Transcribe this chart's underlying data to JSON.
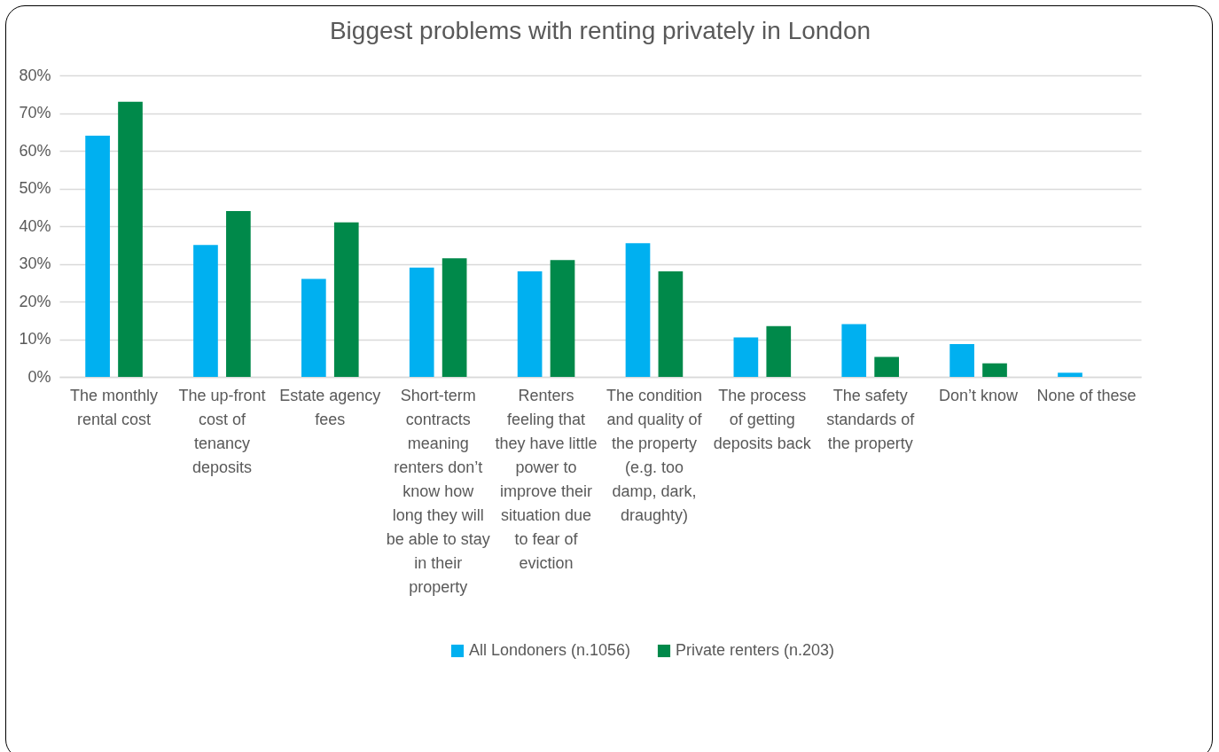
{
  "chart_data": {
    "type": "bar",
    "title": "Biggest problems with renting privately in London",
    "categories": [
      "The monthly rental cost",
      "The up-front cost of tenancy deposits",
      "Estate agency fees",
      "Short-term contracts meaning renters don’t know how long they will be able to stay in their property",
      "Renters feeling that they have little power to improve their situation due to fear of eviction",
      "The condition and quality of the property (e.g. too damp, dark, draughty)",
      "The process of getting deposits back",
      "The safety standards of the property",
      "Don’t know",
      "None of these"
    ],
    "series": [
      {
        "name": "All Londoners (n.1056)",
        "color": "#00b0f0",
        "values": [
          64,
          35,
          26,
          29,
          28,
          35.5,
          10.5,
          14,
          8.7,
          1.1
        ]
      },
      {
        "name": "Private renters (n.203)",
        "color": "#00894a",
        "values": [
          73,
          44,
          41,
          31.5,
          31,
          28,
          13.5,
          5.3,
          3.6,
          0
        ]
      }
    ],
    "ylim": [
      0,
      80
    ],
    "yticks": [
      {
        "value": 0,
        "label": "0%"
      },
      {
        "value": 10,
        "label": "10%"
      },
      {
        "value": 20,
        "label": "20%"
      },
      {
        "value": 30,
        "label": "30%"
      },
      {
        "value": 40,
        "label": "40%"
      },
      {
        "value": 50,
        "label": "50%"
      },
      {
        "value": 60,
        "label": "60%"
      },
      {
        "value": 70,
        "label": "70%"
      },
      {
        "value": 80,
        "label": "80%"
      }
    ],
    "grid": "y",
    "legend": "bottom"
  }
}
